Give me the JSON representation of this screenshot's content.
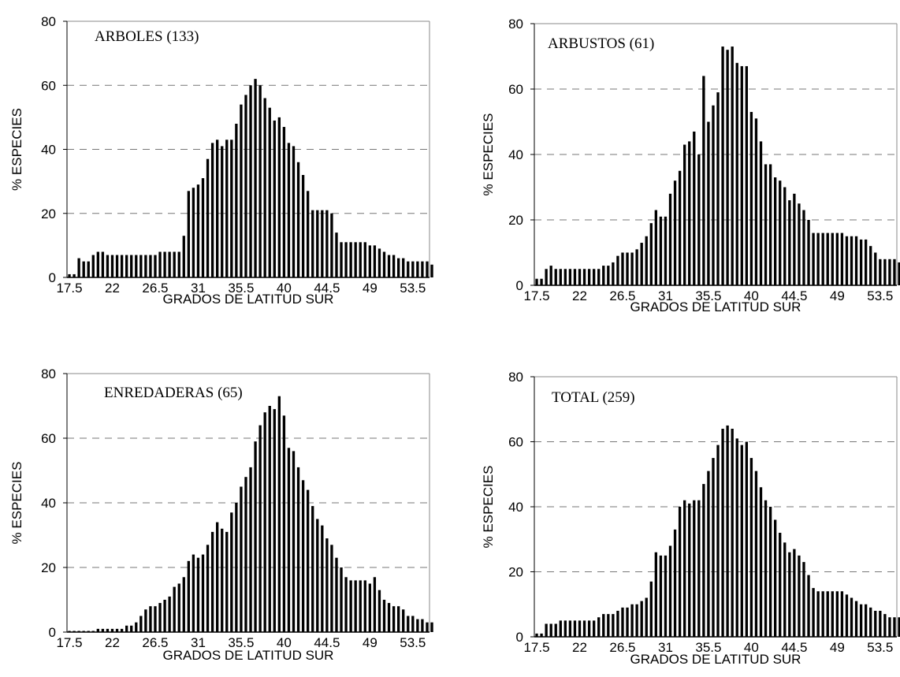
{
  "chart_data": [
    {
      "type": "bar",
      "title": "ARBOLES (133)",
      "xlabel": "GRADOS DE LATITUD SUR",
      "ylabel": "% ESPECIES",
      "ylim": [
        0,
        80
      ],
      "yticks": [
        "0",
        "20",
        "40",
        "60",
        "80"
      ],
      "xticks": [
        "17.5",
        "22",
        "26.5",
        "31",
        "35.5",
        "40",
        "44.5",
        "49",
        "53.5"
      ],
      "xlim": [
        17.5,
        55.5
      ],
      "grid": "dashed horizontal",
      "x_step": 0.5,
      "values": [
        1,
        1,
        6,
        5,
        5,
        7,
        8,
        8,
        7,
        7,
        7,
        7,
        7,
        7,
        7,
        7,
        7,
        7,
        7,
        8,
        8,
        8,
        8,
        8,
        13,
        27,
        28,
        29,
        31,
        37,
        42,
        43,
        41,
        43,
        43,
        48,
        54,
        57,
        60,
        62,
        60,
        56,
        53,
        49,
        50,
        47,
        42,
        41,
        36,
        32,
        27,
        21,
        21,
        21,
        21,
        20,
        14,
        11,
        11,
        11,
        11,
        11,
        11,
        10,
        10,
        9,
        8,
        7,
        7,
        6,
        6,
        5,
        5,
        5,
        5,
        5,
        4
      ]
    },
    {
      "type": "bar",
      "title": "ARBUSTOS (61)",
      "xlabel": "GRADOS DE LATITUD SUR",
      "ylabel": "% ESPECIES",
      "ylim": [
        0,
        80
      ],
      "yticks": [
        "0",
        "20",
        "40",
        "60",
        "80"
      ],
      "xticks": [
        "17.5",
        "22",
        "26.5",
        "31",
        "35.5",
        "40",
        "44.5",
        "49",
        "53.5"
      ],
      "xlim": [
        17.5,
        55.5
      ],
      "grid": "dashed horizontal",
      "x_step": 0.5,
      "values": [
        2,
        2,
        5,
        6,
        5,
        5,
        5,
        5,
        5,
        5,
        5,
        5,
        5,
        5,
        6,
        6,
        7,
        9,
        10,
        10,
        10,
        11,
        13,
        15,
        19,
        23,
        21,
        21,
        28,
        32,
        35,
        43,
        44,
        47,
        40,
        64,
        50,
        55,
        59,
        73,
        72,
        73,
        68,
        67,
        67,
        53,
        51,
        44,
        37,
        37,
        33,
        32,
        30,
        26,
        28,
        25,
        23,
        20,
        16,
        16,
        16,
        16,
        16,
        16,
        16,
        15,
        15,
        15,
        14,
        14,
        12,
        10,
        8,
        8,
        8,
        8,
        7
      ]
    },
    {
      "type": "bar",
      "title": "ENREDADERAS (65)",
      "xlabel": "GRADOS DE LATITUD SUR",
      "ylabel": "% ESPECIES",
      "ylim": [
        0,
        80
      ],
      "yticks": [
        "0",
        "20",
        "40",
        "60",
        "80"
      ],
      "xticks": [
        "17.5",
        "22",
        "26.5",
        "31",
        "35.5",
        "40",
        "44.5",
        "49",
        "53.5"
      ],
      "xlim": [
        17.5,
        55.5
      ],
      "grid": "dashed horizontal",
      "x_step": 0.5,
      "values": [
        0,
        0,
        0,
        0,
        0,
        0,
        1,
        1,
        1,
        1,
        1,
        1,
        2,
        2,
        3,
        5,
        7,
        8,
        8,
        9,
        10,
        11,
        14,
        15,
        17,
        22,
        24,
        23,
        24,
        27,
        31,
        34,
        32,
        31,
        37,
        40,
        45,
        48,
        51,
        59,
        64,
        68,
        70,
        69,
        73,
        67,
        57,
        56,
        51,
        47,
        44,
        39,
        35,
        33,
        29,
        27,
        23,
        20,
        17,
        16,
        16,
        16,
        16,
        15,
        17,
        13,
        10,
        9,
        8,
        8,
        7,
        5,
        5,
        4,
        4,
        3,
        3
      ]
    },
    {
      "type": "bar",
      "title": "TOTAL (259)",
      "xlabel": "GRADOS DE LATITUD SUR",
      "ylabel": "% ESPECIES",
      "ylim": [
        0,
        80
      ],
      "yticks": [
        "0",
        "20",
        "40",
        "60",
        "80"
      ],
      "xticks": [
        "17.5",
        "22",
        "26.5",
        "31",
        "35.5",
        "40",
        "44.5",
        "49",
        "53.5"
      ],
      "xlim": [
        17.5,
        55.5
      ],
      "grid": "dashed horizontal",
      "x_step": 0.5,
      "values": [
        1,
        1,
        4,
        4,
        4,
        5,
        5,
        5,
        5,
        5,
        5,
        5,
        5,
        6,
        7,
        7,
        7,
        8,
        9,
        9,
        10,
        10,
        11,
        12,
        17,
        26,
        25,
        25,
        28,
        33,
        40,
        42,
        41,
        42,
        42,
        47,
        51,
        55,
        59,
        64,
        65,
        64,
        61,
        59,
        60,
        55,
        51,
        46,
        42,
        40,
        36,
        32,
        29,
        26,
        27,
        25,
        23,
        19,
        15,
        14,
        14,
        14,
        14,
        14,
        14,
        13,
        12,
        11,
        10,
        10,
        9,
        8,
        8,
        7,
        6,
        6,
        6
      ]
    }
  ]
}
